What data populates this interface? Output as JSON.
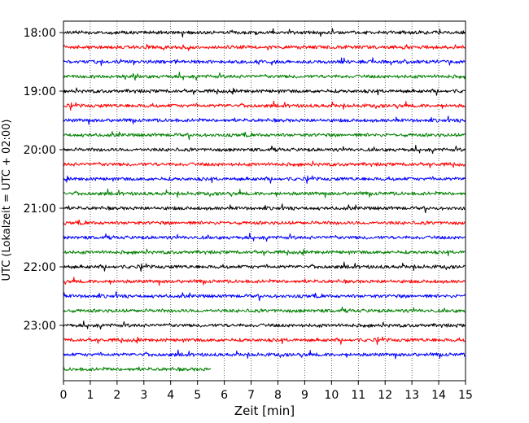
{
  "chart_data": {
    "type": "line",
    "title": "",
    "xlabel": "Zeit  [min]",
    "ylabel": "UTC (Lokalzeit = UTC + 02:00)",
    "xlim": [
      0,
      15
    ],
    "x_ticks": [
      "0",
      "1",
      "2",
      "3",
      "4",
      "5",
      "6",
      "7",
      "8",
      "9",
      "10",
      "11",
      "12",
      "13",
      "14",
      "15"
    ],
    "y_ticks": [
      "18:00",
      "19:00",
      "20:00",
      "21:00",
      "22:00",
      "23:00"
    ],
    "trace_minutes_per_line": 15,
    "grid": "vertical-dotted",
    "trace_colors": [
      "#000000",
      "#ff0000",
      "#0000ff",
      "#008000"
    ],
    "series": [
      {
        "start": "18:00",
        "end_min": 15
      },
      {
        "start": "18:15",
        "end_min": 15
      },
      {
        "start": "18:30",
        "end_min": 15
      },
      {
        "start": "18:45",
        "end_min": 15
      },
      {
        "start": "19:00",
        "end_min": 15
      },
      {
        "start": "19:15",
        "end_min": 15
      },
      {
        "start": "19:30",
        "end_min": 15
      },
      {
        "start": "19:45",
        "end_min": 15
      },
      {
        "start": "20:00",
        "end_min": 15
      },
      {
        "start": "20:15",
        "end_min": 15
      },
      {
        "start": "20:30",
        "end_min": 15
      },
      {
        "start": "20:45",
        "end_min": 15
      },
      {
        "start": "21:00",
        "end_min": 15
      },
      {
        "start": "21:15",
        "end_min": 15
      },
      {
        "start": "21:30",
        "end_min": 15
      },
      {
        "start": "21:45",
        "end_min": 15
      },
      {
        "start": "22:00",
        "end_min": 15
      },
      {
        "start": "22:15",
        "end_min": 15
      },
      {
        "start": "22:30",
        "end_min": 15
      },
      {
        "start": "22:45",
        "end_min": 15
      },
      {
        "start": "23:00",
        "end_min": 15
      },
      {
        "start": "23:15",
        "end_min": 15
      },
      {
        "start": "23:30",
        "end_min": 15
      },
      {
        "start": "23:45",
        "end_min": 5.5
      }
    ]
  }
}
